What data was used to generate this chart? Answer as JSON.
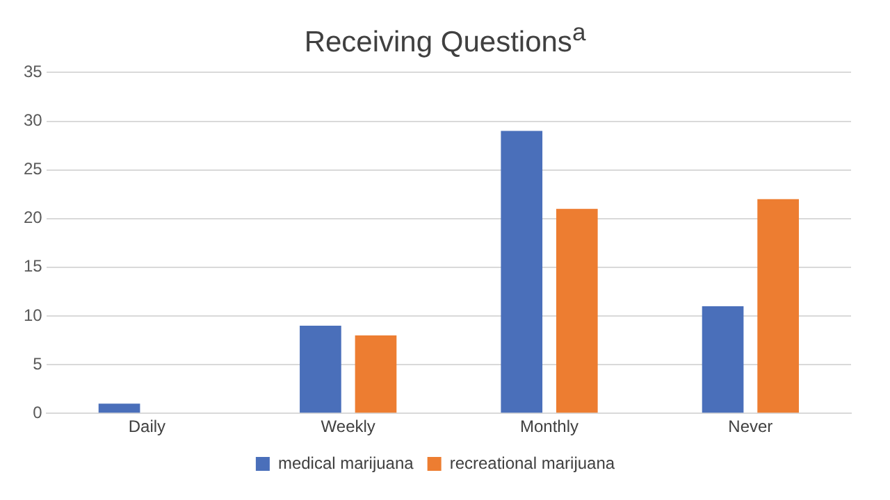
{
  "chart_data": {
    "type": "bar",
    "title": "Receiving Questions$^{a}$",
    "categories": [
      "Daily",
      "Weekly",
      "Monthly",
      "Never"
    ],
    "series": [
      {
        "name": "medical marijuana",
        "color": "#4a6fba",
        "values": [
          1,
          9,
          29,
          11
        ]
      },
      {
        "name": "recreational marijuana",
        "color": "#ed7d31",
        "values": [
          0,
          8,
          21,
          22
        ]
      }
    ],
    "ylim": [
      0,
      35
    ],
    "yticks": [
      0,
      5,
      10,
      15,
      20,
      25,
      30,
      35
    ],
    "grid": "y",
    "legend": "bottom"
  }
}
